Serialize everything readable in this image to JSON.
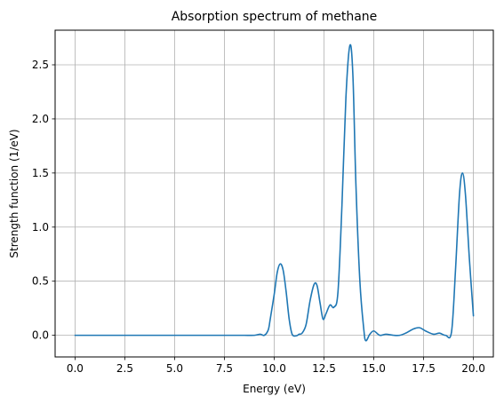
{
  "chart_data": {
    "type": "line",
    "title": "Absorption spectrum of methane",
    "xlabel": "Energy (eV)",
    "ylabel": "Strength function (1/eV)",
    "xlim": [
      -1.0,
      21.0
    ],
    "ylim": [
      -0.2,
      2.82
    ],
    "xticks": [
      0.0,
      2.5,
      5.0,
      7.5,
      10.0,
      12.5,
      15.0,
      17.5,
      20.0
    ],
    "xtick_labels": [
      "0.0",
      "2.5",
      "5.0",
      "7.5",
      "10.0",
      "12.5",
      "15.0",
      "17.5",
      "20.0"
    ],
    "yticks": [
      0.0,
      0.5,
      1.0,
      1.5,
      2.0,
      2.5
    ],
    "ytick_labels": [
      "0.0",
      "0.5",
      "1.0",
      "1.5",
      "2.0",
      "2.5"
    ],
    "grid": true,
    "line_color": "#1f77b4",
    "series": [
      {
        "x": [
          0.0,
          1.0,
          2.0,
          3.0,
          4.0,
          5.0,
          6.0,
          7.0,
          8.0,
          8.5,
          9.0,
          9.3,
          9.5,
          9.7,
          9.8,
          10.0,
          10.15,
          10.3,
          10.45,
          10.6,
          10.75,
          10.9,
          11.1,
          11.25,
          11.4,
          11.6,
          11.8,
          12.0,
          12.15,
          12.3,
          12.45,
          12.6,
          12.8,
          13.0,
          13.2,
          13.4,
          13.6,
          13.8,
          13.95,
          14.1,
          14.3,
          14.5,
          14.6,
          14.8,
          15.0,
          15.3,
          15.6,
          16.0,
          16.3,
          16.6,
          17.0,
          17.3,
          17.6,
          18.0,
          18.3,
          18.6,
          18.9,
          19.1,
          19.3,
          19.45,
          19.6,
          19.8,
          20.0
        ],
        "y": [
          0.0,
          0.0,
          0.0,
          0.0,
          0.0,
          0.0,
          0.0,
          0.0,
          0.0,
          0.0,
          0.0,
          0.01,
          0.0,
          0.05,
          0.15,
          0.38,
          0.58,
          0.66,
          0.6,
          0.4,
          0.15,
          0.01,
          -0.005,
          0.01,
          0.02,
          0.1,
          0.32,
          0.47,
          0.46,
          0.3,
          0.15,
          0.2,
          0.28,
          0.26,
          0.4,
          1.2,
          2.2,
          2.68,
          2.4,
          1.4,
          0.5,
          0.05,
          -0.05,
          0.01,
          0.04,
          0.0,
          0.01,
          0.0,
          0.0,
          0.02,
          0.06,
          0.07,
          0.04,
          0.01,
          0.02,
          0.0,
          0.03,
          0.6,
          1.3,
          1.5,
          1.3,
          0.7,
          0.18
        ]
      }
    ]
  }
}
